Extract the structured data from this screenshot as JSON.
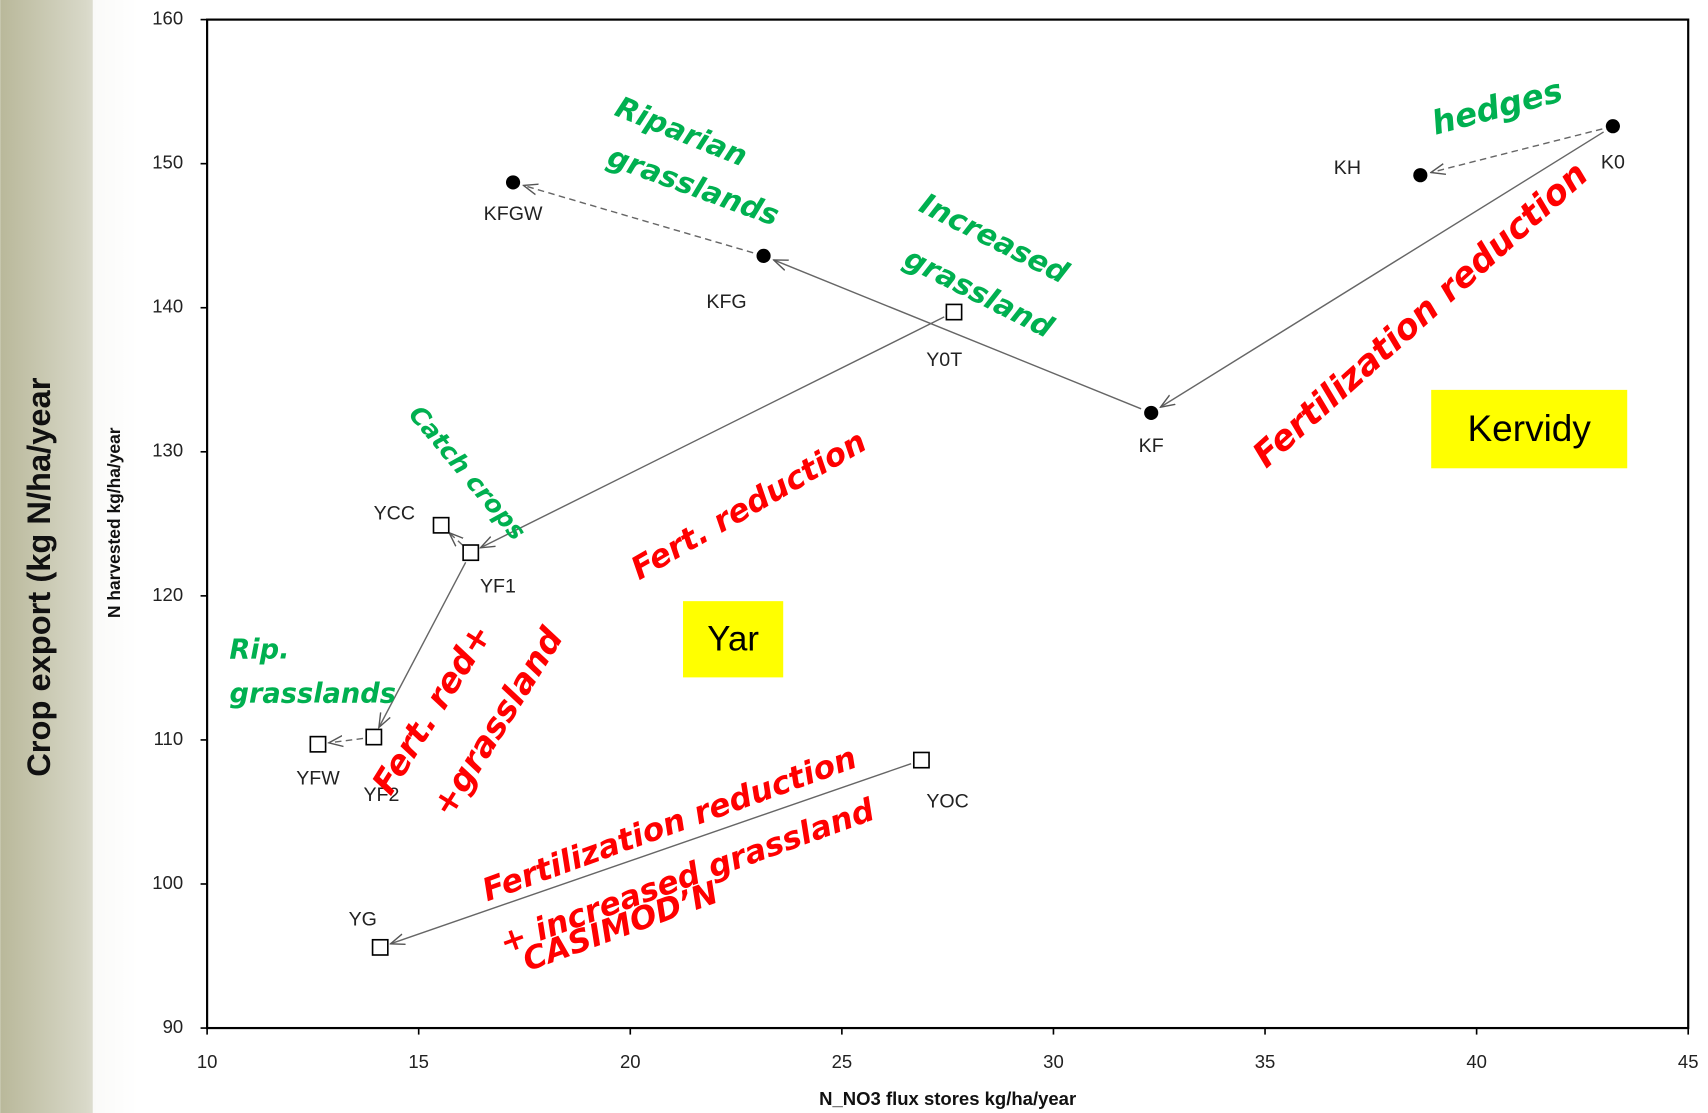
{
  "chart_data": {
    "type": "scatter",
    "outer_ylabel": "Crop export (kg N/ha/year",
    "ylabel": "N harvested kg/ha/year",
    "xlabel": "N_NO3 flux stores kg/ha/year",
    "xlim": [
      10,
      45
    ],
    "xticks": [
      10,
      15,
      20,
      25,
      30,
      35,
      40,
      45
    ],
    "ylim": [
      90,
      160
    ],
    "yticks": [
      90,
      100,
      110,
      120,
      130,
      140,
      150,
      160
    ],
    "series": [
      {
        "name": "Kervidy",
        "marker": "circle",
        "color": "#000000",
        "box_color": "#ffff00",
        "labels": [
          "K0",
          "KH",
          "KF",
          "KFG",
          "KFGW"
        ],
        "x": [
          43.22,
          38.67,
          32.31,
          23.15,
          17.23
        ],
        "y": [
          152.6,
          149.2,
          132.7,
          143.6,
          148.7
        ]
      },
      {
        "name": "Yar",
        "marker": "square",
        "color": "#000000",
        "box_color": "#ffff00",
        "labels": [
          "Y0T",
          "YF1",
          "YCC",
          "YF2",
          "YFW",
          "YOC",
          "YG"
        ],
        "x": [
          27.65,
          16.23,
          15.53,
          13.94,
          12.62,
          26.88,
          14.09
        ],
        "y": [
          139.7,
          123.0,
          124.9,
          110.2,
          109.7,
          108.6,
          95.6
        ]
      }
    ],
    "annotations": [
      {
        "lines": [
          "hedges"
        ],
        "color": "#00b050"
      },
      {
        "lines": [
          "Riparian",
          "grasslands"
        ],
        "color": "#00b050"
      },
      {
        "lines": [
          "Increased",
          "grassland"
        ],
        "color": "#00b050"
      },
      {
        "lines": [
          "Fertilization reduction"
        ],
        "color": "#ff0000"
      },
      {
        "lines": [
          "Catch crops"
        ],
        "color": "#00b050"
      },
      {
        "lines": [
          "Fert. reduction"
        ],
        "color": "#ff0000"
      },
      {
        "lines": [
          "Rip.",
          "grasslands"
        ],
        "color": "#00b050"
      },
      {
        "lines": [
          "Fert. red+",
          "+grassland"
        ],
        "color": "#ff0000"
      },
      {
        "lines": [
          "Fertilization reduction",
          "+ increased grassland",
          "CASIMOD’N"
        ],
        "color": "#ff0000"
      }
    ]
  }
}
